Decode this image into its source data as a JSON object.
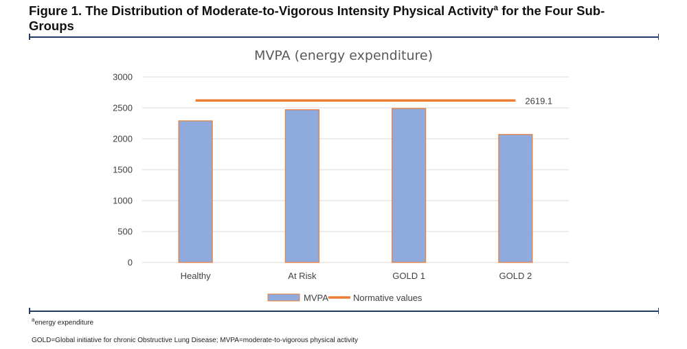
{
  "figure": {
    "title_main": "Figure 1. The Distribution of Moderate-to-Vigorous Intensity Physical Activity",
    "title_sup": "a",
    "title_end": " for the Four Sub-Groups"
  },
  "chart_data": {
    "type": "bar",
    "title": "MVPA (energy expenditure)",
    "categories": [
      "Healthy",
      "At Risk",
      "GOLD 1",
      "GOLD 2"
    ],
    "series": [
      {
        "name": "MVPA",
        "type": "bar",
        "values": [
          2290,
          2470,
          2490,
          2070
        ]
      },
      {
        "name": "Normative values",
        "type": "line",
        "value": 2619.1,
        "value_label": "2619.1"
      }
    ],
    "ylim": [
      0,
      3000
    ],
    "yticks": [
      "0",
      "500",
      "1000",
      "1500",
      "2000",
      "2500",
      "3000"
    ],
    "grid": true,
    "legend": "bottom",
    "colors": {
      "bar_fill": "#8faadc",
      "bar_stroke": "#ed7d31",
      "line": "#ed7d31",
      "axis": "#d9d9d9"
    }
  },
  "notes": {
    "footnote_sup": "a",
    "footnote_text": "energy expenditure",
    "abbreviations": "GOLD=Global initiative for chronic Obstructive Lung Disease; MVPA=moderate-to-vigorous physical activity"
  }
}
